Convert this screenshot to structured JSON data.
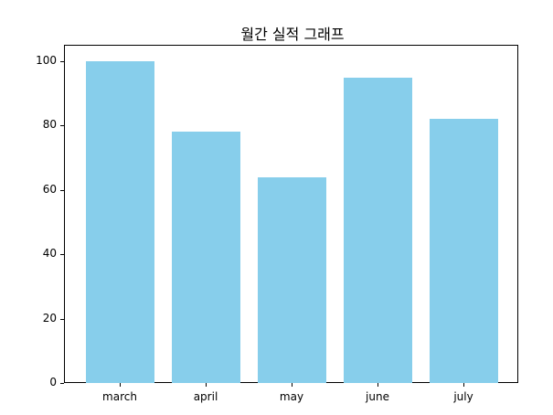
{
  "chart_data": {
    "type": "bar",
    "title": "월간 실적 그래프",
    "xlabel": "",
    "ylabel": "",
    "categories": [
      "march",
      "april",
      "may",
      "june",
      "july"
    ],
    "values": [
      100,
      78,
      64,
      95,
      82
    ],
    "ylim": [
      0,
      105
    ],
    "yticks": [
      0,
      20,
      40,
      60,
      80,
      100
    ],
    "bar_color": "#87ceeb",
    "grid": false,
    "legend": null
  }
}
